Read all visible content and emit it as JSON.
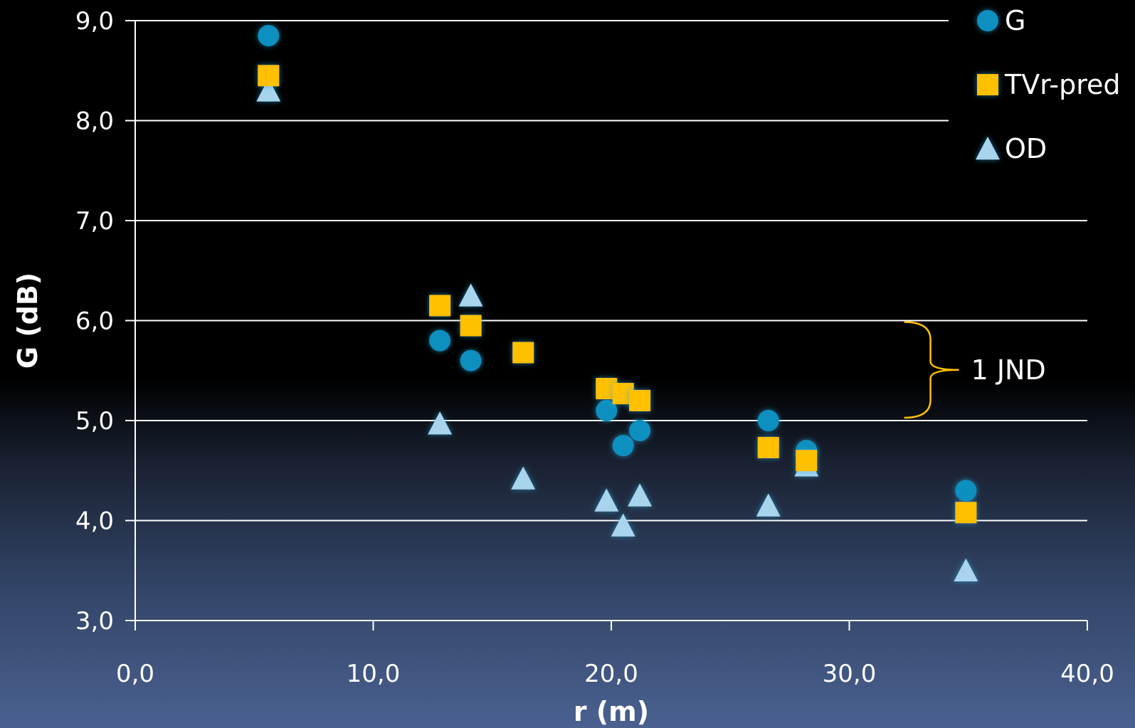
{
  "chart_data": {
    "type": "scatter",
    "title": "",
    "xlabel": "r (m)",
    "ylabel": "G (dB)",
    "xlim": [
      0,
      40
    ],
    "ylim": [
      3,
      9
    ],
    "x_ticks": [
      "0,0",
      "10,0",
      "20,0",
      "30,0",
      "40,0"
    ],
    "y_ticks": [
      "3,0",
      "4,0",
      "5,0",
      "6,0",
      "7,0",
      "8,0",
      "9,0"
    ],
    "grid": "horizontal",
    "legend_position": "top-right",
    "series": [
      {
        "name": "G",
        "marker": "circle",
        "color": "#0a8fbf",
        "points": [
          [
            5.6,
            8.85
          ],
          [
            12.8,
            5.8
          ],
          [
            14.1,
            5.6
          ],
          [
            19.8,
            5.1
          ],
          [
            20.5,
            4.75
          ],
          [
            21.2,
            4.9
          ],
          [
            26.6,
            5.0
          ],
          [
            28.2,
            4.7
          ],
          [
            34.9,
            4.3
          ]
        ]
      },
      {
        "name": "TVr-pred",
        "marker": "square",
        "color": "#ffc000",
        "points": [
          [
            5.6,
            8.45
          ],
          [
            12.8,
            6.15
          ],
          [
            14.1,
            5.95
          ],
          [
            16.3,
            5.68
          ],
          [
            19.8,
            5.32
          ],
          [
            20.5,
            5.27
          ],
          [
            21.2,
            5.2
          ],
          [
            26.6,
            4.73
          ],
          [
            28.2,
            4.6
          ],
          [
            34.9,
            4.08
          ]
        ]
      },
      {
        "name": "OD",
        "marker": "triangle",
        "color": "#a8d4ee",
        "points": [
          [
            5.6,
            8.3
          ],
          [
            12.8,
            4.97
          ],
          [
            14.1,
            6.25
          ],
          [
            16.3,
            4.42
          ],
          [
            19.8,
            4.2
          ],
          [
            20.5,
            3.95
          ],
          [
            21.2,
            4.25
          ],
          [
            26.6,
            4.15
          ],
          [
            28.2,
            4.55
          ],
          [
            34.9,
            3.5
          ]
        ]
      }
    ],
    "annotations": [
      {
        "text": "1 JND",
        "y_range": [
          5.0,
          6.0
        ],
        "x": 33.5,
        "color": "#ffc000"
      }
    ]
  }
}
